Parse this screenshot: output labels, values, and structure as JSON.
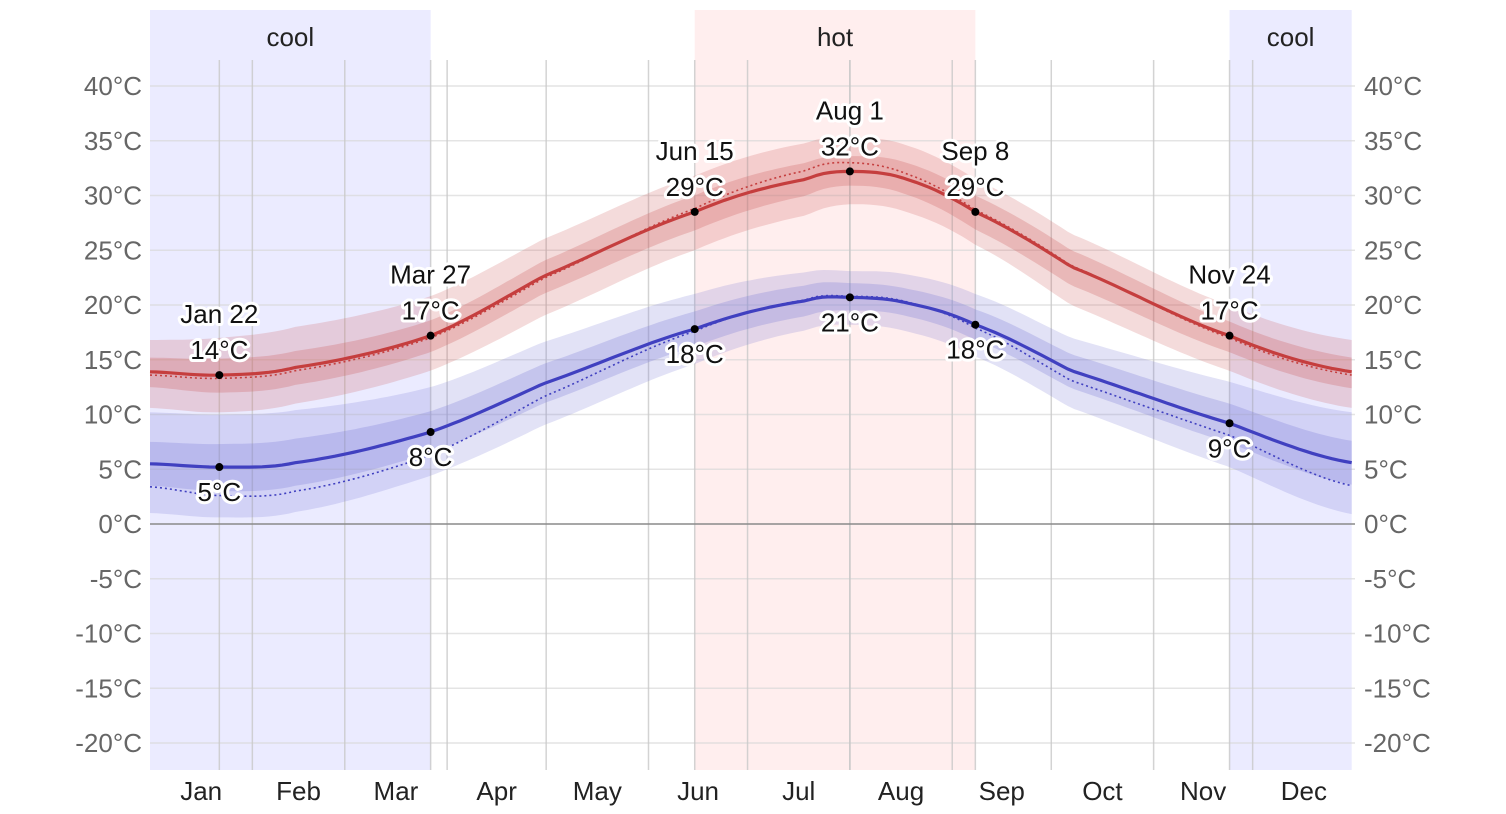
{
  "chart_data": {
    "type": "line",
    "y_axis": {
      "min": -22.5,
      "max": 42.5,
      "ticks": [
        -20,
        -15,
        -10,
        -5,
        0,
        5,
        10,
        15,
        20,
        25,
        30,
        35,
        40
      ],
      "tick_labels": [
        "-20°C",
        "-15°C",
        "-10°C",
        "-5°C",
        "0°C",
        "5°C",
        "10°C",
        "15°C",
        "20°C",
        "25°C",
        "30°C",
        "35°C",
        "40°C"
      ]
    },
    "months": [
      "Jan",
      "Feb",
      "Mar",
      "Apr",
      "May",
      "Jun",
      "Jul",
      "Aug",
      "Sep",
      "Oct",
      "Nov",
      "Dec"
    ],
    "month_starts_day": [
      1,
      32,
      60,
      91,
      121,
      152,
      182,
      213,
      244,
      274,
      305,
      335
    ],
    "days_in_year": 365,
    "seasons": [
      {
        "label": "cool",
        "start_day": 1,
        "end_day": 86,
        "color": "#ebebff"
      },
      {
        "label": "hot",
        "start_day": 166,
        "end_day": 251,
        "color": "#ffeeee"
      },
      {
        "label": "cool",
        "start_day": 328,
        "end_day": 365,
        "color": "#ebebff"
      }
    ],
    "series": [
      {
        "key": "high",
        "color": "#c53e3e",
        "band_color": "#cd5c5c",
        "days": [
          1,
          22,
          45,
          86,
          120,
          166,
          200,
          213,
          230,
          251,
          280,
          328,
          365
        ],
        "avg": [
          13.9,
          13.6,
          14.3,
          17.2,
          22.6,
          28.5,
          31.5,
          32.2,
          31.5,
          28.5,
          23.5,
          17.2,
          13.9
        ],
        "p25": [
          12.5,
          12.0,
          12.7,
          15.7,
          21.0,
          26.8,
          30.0,
          30.9,
          30.1,
          26.9,
          21.8,
          15.7,
          12.4
        ],
        "p75": [
          15.2,
          15.1,
          15.8,
          18.6,
          24.0,
          30.0,
          33.0,
          33.6,
          33.0,
          30.0,
          25.0,
          18.5,
          15.2
        ],
        "p10": [
          10.6,
          10.2,
          11.0,
          14.0,
          19.0,
          25.0,
          28.2,
          29.2,
          28.5,
          25.5,
          20.0,
          14.0,
          10.6
        ],
        "p90": [
          16.8,
          17.0,
          18.0,
          20.8,
          26.0,
          31.8,
          34.8,
          35.3,
          34.6,
          31.5,
          26.5,
          20.0,
          16.8
        ],
        "trend": [
          13.6,
          13.3,
          14.0,
          17.0,
          22.4,
          28.8,
          32.3,
          33.0,
          32.0,
          28.7,
          23.6,
          17.0,
          13.6
        ],
        "markers": [
          {
            "day": 22,
            "value": 13.6,
            "date_label": "Jan 22",
            "value_label": "14°C"
          },
          {
            "day": 86,
            "value": 17.2,
            "date_label": "Mar 27",
            "value_label": "17°C"
          },
          {
            "day": 166,
            "value": 28.5,
            "date_label": "Jun 15",
            "value_label": "29°C"
          },
          {
            "day": 213,
            "value": 32.2,
            "date_label": "Aug 1",
            "value_label": "32°C"
          },
          {
            "day": 251,
            "value": 28.5,
            "date_label": "Sep 8",
            "value_label": "29°C"
          },
          {
            "day": 328,
            "value": 17.2,
            "date_label": "Nov 24",
            "value_label": "17°C"
          }
        ]
      },
      {
        "key": "low",
        "color": "#4040c0",
        "band_color": "#7b7bd8",
        "days": [
          1,
          22,
          45,
          86,
          120,
          166,
          200,
          213,
          230,
          251,
          280,
          328,
          365
        ],
        "avg": [
          5.5,
          5.2,
          5.6,
          8.4,
          12.8,
          17.8,
          20.4,
          20.7,
          20.2,
          18.2,
          14.0,
          9.2,
          5.6
        ],
        "p25": [
          3.5,
          3.0,
          3.5,
          6.5,
          11.0,
          16.2,
          19.0,
          19.5,
          19.0,
          16.8,
          12.4,
          7.4,
          3.6
        ],
        "p75": [
          7.5,
          7.3,
          7.8,
          10.3,
          14.6,
          19.4,
          21.8,
          22.0,
          21.5,
          19.6,
          15.5,
          11.0,
          7.6
        ],
        "p10": [
          1.0,
          0.6,
          1.1,
          4.4,
          9.0,
          14.6,
          17.7,
          18.2,
          17.6,
          15.3,
          10.6,
          5.2,
          0.9
        ],
        "p90": [
          10.2,
          10.0,
          10.4,
          12.5,
          16.6,
          21.0,
          23.0,
          23.1,
          22.8,
          21.0,
          17.0,
          13.0,
          10.2
        ],
        "trend": [
          3.4,
          2.6,
          3.0,
          6.3,
          11.6,
          17.6,
          20.5,
          20.8,
          20.3,
          17.9,
          13.1,
          8.1,
          3.5
        ],
        "markers": [
          {
            "day": 22,
            "value": 5.2,
            "value_label": "5°C"
          },
          {
            "day": 86,
            "value": 8.4,
            "value_label": "8°C"
          },
          {
            "day": 166,
            "value": 17.8,
            "value_label": "18°C"
          },
          {
            "day": 213,
            "value": 20.7,
            "value_label": "21°C"
          },
          {
            "day": 251,
            "value": 18.2,
            "value_label": "18°C"
          },
          {
            "day": 328,
            "value": 9.2,
            "value_label": "9°C"
          }
        ]
      }
    ]
  }
}
